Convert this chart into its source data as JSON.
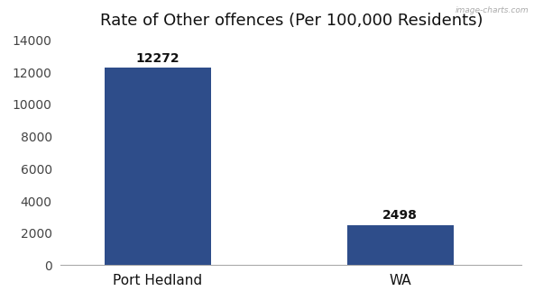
{
  "categories": [
    "Port Hedland",
    "WA"
  ],
  "values": [
    12272,
    2498
  ],
  "bar_color": "#2e4d8a",
  "title": "Rate of Other offences (Per 100,000 Residents)",
  "title_fontsize": 13,
  "ylim": [
    0,
    14000
  ],
  "yticks": [
    0,
    2000,
    4000,
    6000,
    8000,
    10000,
    12000,
    14000
  ],
  "bar_label_fontsize": 10,
  "xtick_fontsize": 11,
  "ytick_fontsize": 10,
  "background_color": "#ffffff",
  "watermark": "image-charts.com",
  "bar_positions": [
    0.2,
    0.7
  ],
  "bar_width": 0.22,
  "xlim": [
    0,
    0.95
  ]
}
